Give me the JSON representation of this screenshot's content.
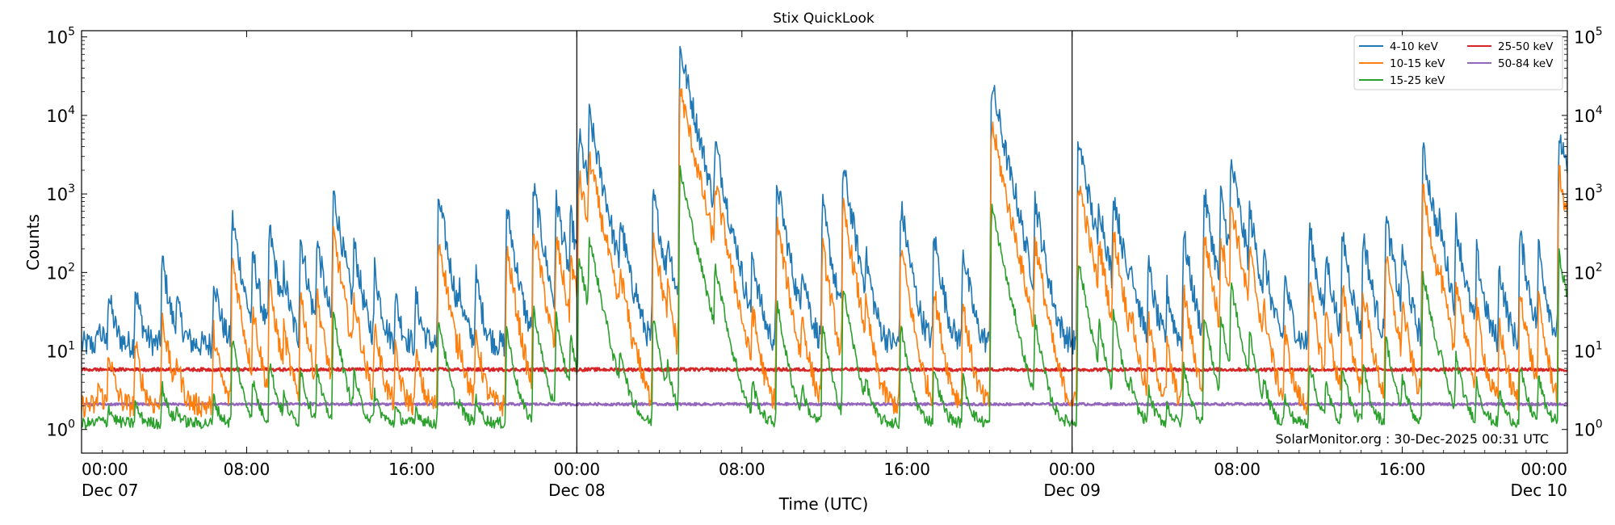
{
  "chart_data": {
    "type": "line",
    "title": "Stix QuickLook",
    "xlabel": "Time (UTC)",
    "ylabel": "Counts",
    "yscale": "log",
    "ylim": [
      0.5,
      120000
    ],
    "xlim_hours": [
      0,
      72
    ],
    "grid": false,
    "legend_position": "top-right",
    "y_ticks": [
      {
        "base": "10",
        "exp": "0",
        "value": 1
      },
      {
        "base": "10",
        "exp": "1",
        "value": 10
      },
      {
        "base": "10",
        "exp": "2",
        "value": 100
      },
      {
        "base": "10",
        "exp": "3",
        "value": 1000
      },
      {
        "base": "10",
        "exp": "4",
        "value": 10000
      },
      {
        "base": "10",
        "exp": "5",
        "value": 100000
      }
    ],
    "x_ticks": [
      {
        "hour": 0,
        "time": "00:00",
        "date": "Dec 07"
      },
      {
        "hour": 8,
        "time": "08:00",
        "date": ""
      },
      {
        "hour": 16,
        "time": "16:00",
        "date": ""
      },
      {
        "hour": 24,
        "time": "00:00",
        "date": "Dec 08"
      },
      {
        "hour": 32,
        "time": "08:00",
        "date": ""
      },
      {
        "hour": 40,
        "time": "16:00",
        "date": ""
      },
      {
        "hour": 48,
        "time": "00:00",
        "date": "Dec 09"
      },
      {
        "hour": 56,
        "time": "08:00",
        "date": ""
      },
      {
        "hour": 64,
        "time": "16:00",
        "date": ""
      },
      {
        "hour": 72,
        "time": "00:00",
        "date": "Dec 10"
      }
    ],
    "day_boundaries_hours": [
      24,
      48
    ],
    "flares": [
      {
        "hour": 0.8,
        "peak": 10
      },
      {
        "hour": 1.3,
        "peak": 45
      },
      {
        "hour": 2.6,
        "peak": 55
      },
      {
        "hour": 3.9,
        "peak": 140
      },
      {
        "hour": 4.6,
        "peak": 30
      },
      {
        "hour": 6.4,
        "peak": 80
      },
      {
        "hour": 7.3,
        "peak": 500
      },
      {
        "hour": 8.3,
        "peak": 160
      },
      {
        "hour": 9.1,
        "peak": 350
      },
      {
        "hour": 9.8,
        "peak": 70
      },
      {
        "hour": 10.6,
        "peak": 280
      },
      {
        "hour": 11.4,
        "peak": 250
      },
      {
        "hour": 12.2,
        "peak": 1050
      },
      {
        "hour": 13.2,
        "peak": 200
      },
      {
        "hour": 14.2,
        "peak": 100
      },
      {
        "hour": 15.2,
        "peak": 40
      },
      {
        "hour": 16.2,
        "peak": 40
      },
      {
        "hour": 17.3,
        "peak": 900
      },
      {
        "hour": 18.3,
        "peak": 30
      },
      {
        "hour": 19.1,
        "peak": 80
      },
      {
        "hour": 20.6,
        "peak": 650
      },
      {
        "hour": 21.9,
        "peak": 1200
      },
      {
        "hour": 23.0,
        "peak": 900
      },
      {
        "hour": 23.7,
        "peak": 450
      },
      {
        "hour": 24.1,
        "peak": 5500
      },
      {
        "hour": 24.6,
        "peak": 9000
      },
      {
        "hour": 25.3,
        "peak": 180
      },
      {
        "hour": 26.1,
        "peak": 400
      },
      {
        "hour": 26.8,
        "peak": 30
      },
      {
        "hour": 27.7,
        "peak": 1000
      },
      {
        "hour": 28.4,
        "peak": 200
      },
      {
        "hour": 29.0,
        "peak": 70000
      },
      {
        "hour": 29.9,
        "peak": 300
      },
      {
        "hour": 30.7,
        "peak": 4000
      },
      {
        "hour": 31.7,
        "peak": 60
      },
      {
        "hour": 32.5,
        "peak": 150
      },
      {
        "hour": 33.7,
        "peak": 1400
      },
      {
        "hour": 34.9,
        "peak": 110
      },
      {
        "hour": 35.9,
        "peak": 700
      },
      {
        "hour": 36.9,
        "peak": 2200
      },
      {
        "hour": 38.0,
        "peak": 110
      },
      {
        "hour": 39.7,
        "peak": 700
      },
      {
        "hour": 41.3,
        "peak": 300
      },
      {
        "hour": 42.7,
        "peak": 200
      },
      {
        "hour": 44.1,
        "peak": 25000
      },
      {
        "hour": 45.2,
        "peak": 200
      },
      {
        "hour": 46.2,
        "peak": 800
      },
      {
        "hour": 48.3,
        "peak": 5000
      },
      {
        "hour": 49.3,
        "peak": 600
      },
      {
        "hour": 50.0,
        "peak": 1000
      },
      {
        "hour": 50.8,
        "peak": 100
      },
      {
        "hour": 51.7,
        "peak": 110
      },
      {
        "hour": 52.6,
        "peak": 50
      },
      {
        "hour": 53.4,
        "peak": 300
      },
      {
        "hour": 54.4,
        "peak": 1000
      },
      {
        "hour": 55.2,
        "peak": 900
      },
      {
        "hour": 55.7,
        "peak": 2400
      },
      {
        "hour": 56.6,
        "peak": 500
      },
      {
        "hour": 57.3,
        "peak": 110
      },
      {
        "hour": 58.3,
        "peak": 80
      },
      {
        "hour": 59.5,
        "peak": 350
      },
      {
        "hour": 60.3,
        "peak": 150
      },
      {
        "hour": 61.1,
        "peak": 300
      },
      {
        "hour": 62.1,
        "peak": 300
      },
      {
        "hour": 63.2,
        "peak": 500
      },
      {
        "hour": 64.0,
        "peak": 170
      },
      {
        "hour": 65.0,
        "peak": 3500
      },
      {
        "hour": 65.8,
        "peak": 200
      },
      {
        "hour": 66.6,
        "peak": 400
      },
      {
        "hour": 67.6,
        "peak": 160
      },
      {
        "hour": 68.7,
        "peak": 110
      },
      {
        "hour": 69.7,
        "peak": 300
      },
      {
        "hour": 70.6,
        "peak": 200
      },
      {
        "hour": 71.6,
        "peak": 6000
      }
    ],
    "series": [
      {
        "name": "4-10 keV",
        "color": "#1f77b4",
        "baseline": 12,
        "scale": 1.0,
        "noise": 0.35
      },
      {
        "name": "10-15 keV",
        "color": "#ff7f0e",
        "baseline": 2.0,
        "scale": 0.22,
        "noise": 0.3
      },
      {
        "name": "15-25 keV",
        "color": "#2ca02c",
        "baseline": 1.2,
        "scale": 0.02,
        "noise": 0.15
      },
      {
        "name": "25-50 keV",
        "color": "#d62728",
        "baseline": 5.8,
        "scale": 0.0,
        "noise": 0.04
      },
      {
        "name": "50-84 keV",
        "color": "#9467bd",
        "baseline": 2.1,
        "scale": 0.0,
        "noise": 0.03
      }
    ],
    "annotation": "SolarMonitor.org : 30-Dec-2025 00:31 UTC"
  }
}
